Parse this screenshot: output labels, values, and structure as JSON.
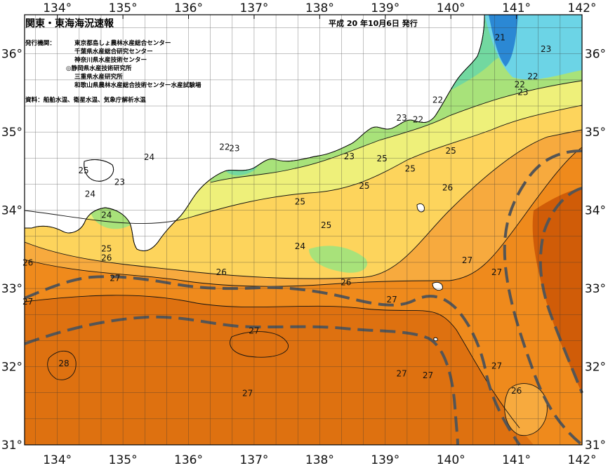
{
  "title": "関東・東海海況速報",
  "issue": "平成 20 年10月6日 発行",
  "publisher_label": "発行機関：",
  "publishers": [
    "東京都島しょ農林水産総合センター",
    "千葉県水産総合研究センター",
    "神奈川県水産技術センター",
    "◎静岡県水産技術研究所",
    "三重県水産研究所",
    "和歌山県農林水産総合技術センター水産試験場"
  ],
  "sources": "資料：船舶水温、衛星水温、気象庁解析水温",
  "axes": {
    "lon_labels": [
      "134°",
      "135°",
      "136°",
      "137°",
      "138°",
      "139°",
      "140°",
      "141°",
      "142°"
    ],
    "lat_labels": [
      "36°",
      "35°",
      "34°",
      "33°",
      "32°",
      "31°"
    ],
    "lon_range": [
      133.5,
      142.0
    ],
    "lat_range": [
      31.0,
      36.5
    ]
  },
  "colors": {
    "t28": "#d05c08",
    "t27": "#ef8a1c",
    "t26": "#f7aa3e",
    "t25": "#fdd45c",
    "t24": "#eef07a",
    "t23": "#a8e27a",
    "t22": "#72d8a0",
    "t21": "#6cd4e6",
    "t20": "#2b88d4",
    "land": "#ffffff",
    "coast": "#000000",
    "kuroshio": "#555555"
  },
  "isotherms": [
    {
      "value": "21",
      "lon": 140.75,
      "lat": 36.2
    },
    {
      "value": "23",
      "lon": 141.45,
      "lat": 36.05
    },
    {
      "value": "22",
      "lon": 141.25,
      "lat": 35.7
    },
    {
      "value": "22",
      "lon": 141.05,
      "lat": 35.6
    },
    {
      "value": "23",
      "lon": 141.1,
      "lat": 35.5
    },
    {
      "value": "22",
      "lon": 139.8,
      "lat": 35.4
    },
    {
      "value": "22",
      "lon": 139.5,
      "lat": 35.15
    },
    {
      "value": "23",
      "lon": 139.25,
      "lat": 35.17
    },
    {
      "value": "22",
      "lon": 136.55,
      "lat": 34.8
    },
    {
      "value": "23",
      "lon": 136.7,
      "lat": 34.78
    },
    {
      "value": "23",
      "lon": 138.45,
      "lat": 34.68
    },
    {
      "value": "24",
      "lon": 135.4,
      "lat": 34.67
    },
    {
      "value": "25",
      "lon": 134.4,
      "lat": 34.5
    },
    {
      "value": "23",
      "lon": 134.95,
      "lat": 34.35
    },
    {
      "value": "24",
      "lon": 134.5,
      "lat": 34.2
    },
    {
      "value": "24",
      "lon": 134.75,
      "lat": 33.93
    },
    {
      "value": "25",
      "lon": 138.95,
      "lat": 34.65
    },
    {
      "value": "25",
      "lon": 139.38,
      "lat": 34.52
    },
    {
      "value": "25",
      "lon": 138.68,
      "lat": 34.3
    },
    {
      "value": "26",
      "lon": 139.95,
      "lat": 34.28
    },
    {
      "value": "25",
      "lon": 140.0,
      "lat": 34.75
    },
    {
      "value": "25",
      "lon": 137.7,
      "lat": 34.1
    },
    {
      "value": "25",
      "lon": 138.1,
      "lat": 33.8
    },
    {
      "value": "24",
      "lon": 137.7,
      "lat": 33.53
    },
    {
      "value": "25",
      "lon": 134.75,
      "lat": 33.5
    },
    {
      "value": "26",
      "lon": 134.75,
      "lat": 33.38
    },
    {
      "value": "26",
      "lon": 133.55,
      "lat": 33.32
    },
    {
      "value": "26",
      "lon": 136.5,
      "lat": 33.2
    },
    {
      "value": "27",
      "lon": 134.88,
      "lat": 33.12
    },
    {
      "value": "26",
      "lon": 138.4,
      "lat": 33.07
    },
    {
      "value": "27",
      "lon": 140.25,
      "lat": 33.35
    },
    {
      "value": "27",
      "lon": 140.7,
      "lat": 33.2
    },
    {
      "value": "27",
      "lon": 133.55,
      "lat": 32.82
    },
    {
      "value": "27",
      "lon": 139.1,
      "lat": 32.85
    },
    {
      "value": "27",
      "lon": 137.0,
      "lat": 32.45
    },
    {
      "value": "28",
      "lon": 134.1,
      "lat": 32.03
    },
    {
      "value": "27",
      "lon": 139.25,
      "lat": 31.9
    },
    {
      "value": "27",
      "lon": 139.65,
      "lat": 31.88
    },
    {
      "value": "27",
      "lon": 140.7,
      "lat": 32.0
    },
    {
      "value": "27",
      "lon": 136.9,
      "lat": 31.65
    },
    {
      "value": "26",
      "lon": 141.0,
      "lat": 31.68
    }
  ]
}
